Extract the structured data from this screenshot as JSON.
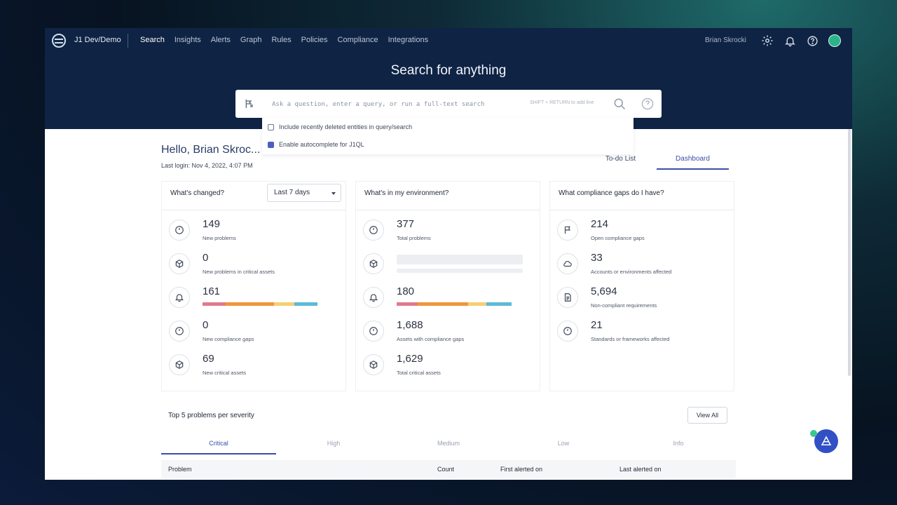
{
  "header": {
    "account": "J1 Dev/Demo",
    "nav": [
      "Search",
      "Insights",
      "Alerts",
      "Graph",
      "Rules",
      "Policies",
      "Compliance",
      "Integrations"
    ],
    "user_name": "Brian Skrocki",
    "icons": [
      "gear-icon",
      "bell-icon",
      "help-icon",
      "avatar"
    ]
  },
  "search": {
    "title": "Search for anything",
    "placeholder": "Ask a question, enter a query, or run a full-text search",
    "hint": "SHIFT + RETURN to add line",
    "options": [
      {
        "label": "Include recently deleted entities in query/search",
        "checked": false
      },
      {
        "label": "Enable autocomplete for J1QL",
        "checked": true
      }
    ]
  },
  "greeting": {
    "hello": "Hello, Brian Skroc...",
    "last_login": "Last login:  Nov 4, 2022, 4:07 PM"
  },
  "view_tabs": [
    "To-do List",
    "Dashboard"
  ],
  "cards": {
    "changed": {
      "title": "What's changed?",
      "range": "Last 7 days",
      "stats": [
        {
          "value": "149",
          "label": "New problems",
          "icon": "clock-icon"
        },
        {
          "value": "0",
          "label": "New problems in critical assets",
          "icon": "cube-icon"
        },
        {
          "value": "161",
          "label": "New alerts",
          "icon": "bell-icon"
        },
        {
          "value": "0",
          "label": "New compliance gaps",
          "icon": "clock-icon"
        },
        {
          "value": "69",
          "label": "New critical assets",
          "icon": "cube-icon"
        }
      ]
    },
    "environment": {
      "title": "What's in my environment?",
      "stats": [
        {
          "value": "377",
          "label": "Total problems",
          "icon": "clock-icon"
        },
        {
          "value": "",
          "label": "",
          "icon": "cube-icon"
        },
        {
          "value": "180",
          "label": "Total alerts",
          "icon": "bell-icon"
        },
        {
          "value": "1,688",
          "label": "Assets with compliance gaps",
          "icon": "clock-icon"
        },
        {
          "value": "1,629",
          "label": "Total critical assets",
          "icon": "cube-icon"
        }
      ]
    },
    "compliance": {
      "title": "What compliance gaps do I have?",
      "stats": [
        {
          "value": "214",
          "label": "Open compliance gaps",
          "icon": "flag-icon"
        },
        {
          "value": "33",
          "label": "Accounts or environments affected",
          "icon": "cloud-icon"
        },
        {
          "value": "5,694",
          "label": "Non-compliant requirements",
          "icon": "document-icon"
        },
        {
          "value": "21",
          "label": "Standards or frameworks affected",
          "icon": "clock-icon"
        }
      ]
    }
  },
  "severity_colors": [
    "#e07a8e",
    "#f0963a",
    "#f5cf74",
    "#5bbbd7"
  ],
  "problems": {
    "title": "Top 5 problems per severity",
    "view_all": "View All",
    "tabs": [
      "Critical",
      "High",
      "Medium",
      "Low",
      "Info"
    ],
    "columns": [
      "Problem",
      "Count",
      "First alerted on",
      "Last alerted on"
    ]
  }
}
